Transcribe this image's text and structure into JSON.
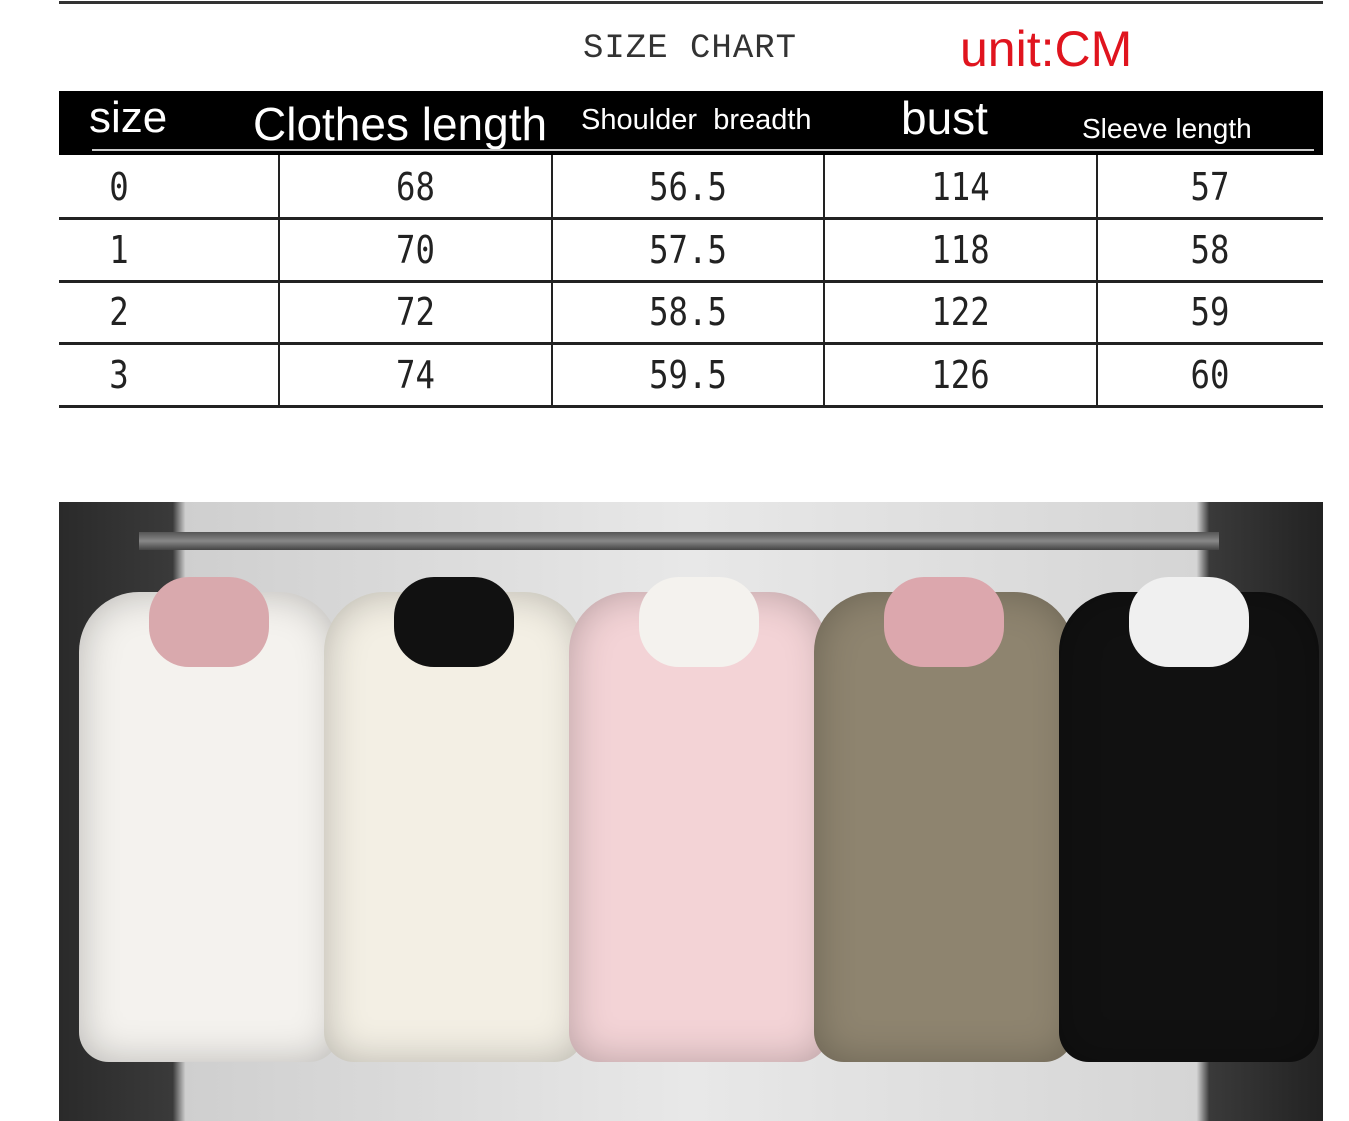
{
  "title": "SIZE CHART",
  "unit": "unit:CM",
  "headers": [
    "size",
    "Clothes length",
    "Shoulder  breadth",
    "bust",
    "Sleeve length"
  ],
  "rows": [
    [
      "0",
      "68",
      "56.5",
      "114",
      "57"
    ],
    [
      "1",
      "70",
      "57.5",
      "118",
      "58"
    ],
    [
      "2",
      "72",
      "58.5",
      "122",
      "59"
    ],
    [
      "3",
      "74",
      "59.5",
      "126",
      "60"
    ]
  ],
  "colors": {
    "unit": "#e0141e",
    "header_bg": "#000000"
  },
  "photo": {
    "jackets": [
      {
        "color": "#f4f2ee",
        "hood": "#d9a9ad"
      },
      {
        "color": "#f3efe4",
        "hood": "#111111"
      },
      {
        "color": "#f3d3d6",
        "hood": "#f4f2ee"
      },
      {
        "color": "#8e846f",
        "hood": "#dca7ad"
      },
      {
        "color": "#111111",
        "hood": "#f0f0f0"
      }
    ]
  }
}
